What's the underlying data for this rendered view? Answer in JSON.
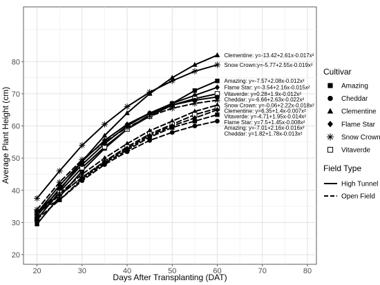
{
  "chart_data": {
    "type": "line",
    "title": "",
    "xlabel": "Days After Transplanting (DAT)",
    "ylabel": "Average Plant Height (cm)",
    "xlim": [
      17,
      82
    ],
    "ylim": [
      17,
      97
    ],
    "xticks": [
      20,
      30,
      40,
      50,
      60,
      70,
      80
    ],
    "yticks": [
      20,
      30,
      40,
      50,
      60,
      70,
      80
    ],
    "x": [
      20,
      25,
      30,
      35,
      40,
      45,
      50,
      55,
      60
    ],
    "grid": true,
    "legend_position": "right",
    "legend": {
      "cultivar_title": "Cultivar",
      "cultivars": [
        {
          "name": "Amazing",
          "marker": "square"
        },
        {
          "name": "Cheddar",
          "marker": "circle"
        },
        {
          "name": "Clementine",
          "marker": "triangle"
        },
        {
          "name": "Flame Star",
          "marker": "diamond"
        },
        {
          "name": "Snow Crown",
          "marker": "asterisk"
        },
        {
          "name": "Vitaverde",
          "marker": "open-square"
        }
      ],
      "fieldtype_title": "Field Type",
      "fieldtypes": [
        {
          "name": "High Tunnel",
          "dash": "solid"
        },
        {
          "name": "Open Field",
          "dash": "dashed"
        }
      ]
    },
    "series": [
      {
        "cultivar": "Clementine",
        "field": "High Tunnel",
        "marker": "triangle",
        "dash": "solid",
        "values": [
          33,
          40,
          49,
          57,
          64,
          70,
          75,
          79,
          82
        ],
        "equation": "Clementine: y=-13.42+2.61x-0.017x²"
      },
      {
        "cultivar": "Snow Crown",
        "field": "High Tunnel",
        "marker": "asterisk",
        "dash": "solid",
        "values": [
          37.5,
          46,
          54,
          60.5,
          66,
          70.5,
          74,
          77,
          79
        ],
        "equation": "Snow Crown:y=-5.77+2.55x-0.019x²"
      },
      {
        "cultivar": "Amazing",
        "field": "High Tunnel",
        "marker": "square",
        "dash": "solid",
        "values": [
          29.5,
          38,
          46,
          53,
          59,
          63.5,
          67,
          71,
          74
        ],
        "equation": "Amazing: y=-7.57+2.08x-0.012x²"
      },
      {
        "cultivar": "Flame Star",
        "field": "High Tunnel",
        "marker": "diamond",
        "dash": "solid",
        "values": [
          33,
          41.5,
          49,
          55.5,
          60.5,
          64,
          67,
          69.5,
          72
        ],
        "equation": "Flame Star: y=-3.54+2.16x-0.015x²"
      },
      {
        "cultivar": "Vitaverde",
        "field": "High Tunnel",
        "marker": "open-square",
        "dash": "solid",
        "values": [
          31,
          39.5,
          47,
          53.5,
          59,
          63,
          66.5,
          68.5,
          70
        ],
        "equation": "Vitaverde: y=0.28+1.9x-0.012x²"
      },
      {
        "cultivar": "Cheddar",
        "field": "High Tunnel",
        "marker": "circle",
        "dash": "solid",
        "values": [
          32,
          40.5,
          48,
          54.5,
          60,
          64,
          66.5,
          68,
          69
        ],
        "equation": "Cheddar: y=-6.66+2.63x-0.022x²"
      },
      {
        "cultivar": "Snow Crown",
        "field": "Open Field",
        "marker": "asterisk",
        "dash": "dashed",
        "values": [
          34,
          42.5,
          49.5,
          55,
          59.5,
          63,
          65.5,
          67,
          68
        ],
        "equation": "Snow Crown: y=-0.06+2.22x-0.018x²"
      },
      {
        "cultivar": "Clementine",
        "field": "Open Field",
        "marker": "triangle",
        "dash": "dashed",
        "values": [
          33,
          39,
          45,
          50,
          54.5,
          58.5,
          61.5,
          64.5,
          66.5
        ],
        "equation": "Clementine: y=6.35+1.4x-0.007x²"
      },
      {
        "cultivar": "Vitaverde",
        "field": "Open Field",
        "marker": "open-square",
        "dash": "dashed",
        "values": [
          33,
          38.5,
          44,
          49,
          53.5,
          57.5,
          60.5,
          63.5,
          65.5
        ],
        "equation": "Vitaverde: y=-4.71+1.95x-0.014x²"
      },
      {
        "cultivar": "Flame Star",
        "field": "Open Field",
        "marker": "diamond",
        "dash": "dashed",
        "values": [
          32.5,
          38.5,
          44,
          49,
          53,
          57,
          60,
          62.5,
          65
        ],
        "equation": "Flame Star: y=7.5+1.45x-0.008x²"
      },
      {
        "cultivar": "Amazing",
        "field": "Open Field",
        "marker": "square",
        "dash": "dashed",
        "values": [
          31,
          37,
          43.5,
          48.5,
          52.5,
          56.5,
          59.5,
          61.5,
          63.5
        ],
        "equation": "Amazing: y=-7.01+2.16x-0.016x²"
      },
      {
        "cultivar": "Cheddar",
        "field": "Open Field",
        "marker": "circle",
        "dash": "dashed",
        "values": [
          33.5,
          37,
          43,
          48,
          52,
          55.5,
          58,
          60,
          61.5
        ],
        "equation": "Cheddar: y=1.82+1.78x-0.013x²"
      }
    ]
  }
}
